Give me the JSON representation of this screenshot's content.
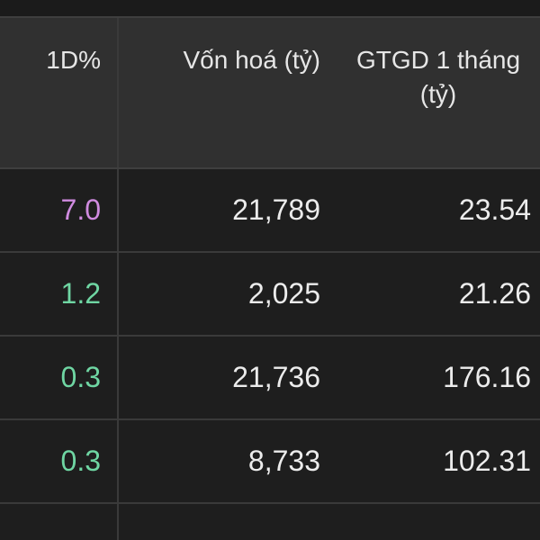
{
  "columns": {
    "change": "1D%",
    "market_cap": "Vốn hoá (tỷ)",
    "avg_value": "GTGD 1 tháng (tỷ)"
  },
  "rows": [
    {
      "change": "7.0",
      "market_cap": "21,789",
      "avg_value": "23.54",
      "change_color": "#d08be0"
    },
    {
      "change": "1.2",
      "market_cap": "2,025",
      "avg_value": "21.26",
      "change_color": "#6fd6a3"
    },
    {
      "change": "0.3",
      "market_cap": "21,736",
      "avg_value": "176.16",
      "change_color": "#6fd6a3"
    },
    {
      "change": "0.3",
      "market_cap": "8,733",
      "avg_value": "102.31",
      "change_color": "#6fd6a3"
    }
  ]
}
